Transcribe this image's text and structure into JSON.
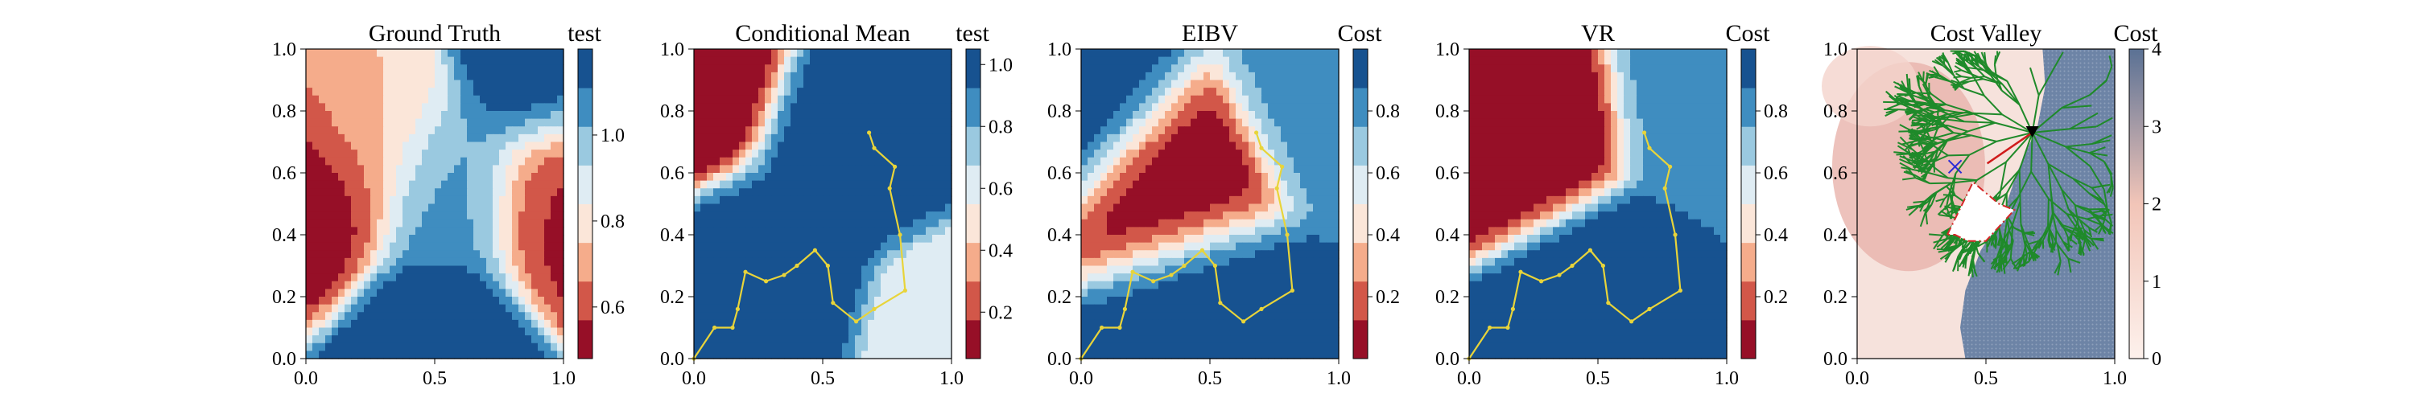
{
  "chart_data": [
    {
      "type": "heatmap",
      "title": "Ground Truth",
      "xlabel": "",
      "ylabel": "",
      "xlim": [
        0.0,
        1.0
      ],
      "ylim": [
        0.0,
        1.0
      ],
      "x_ticks": [
        "0.0",
        "0.5",
        "1.0"
      ],
      "y_ticks": [
        "0.0",
        "0.2",
        "0.4",
        "0.6",
        "0.8",
        "1.0"
      ],
      "colormap": "RdBu",
      "colorbar": {
        "title": "test",
        "range": [
          0.48,
          1.2
        ],
        "ticks": [
          "0.6",
          "0.8",
          "1.0"
        ],
        "tick_values": [
          0.6,
          0.8,
          1.0
        ]
      },
      "field_features": [
        {
          "x": 0.05,
          "y": 0.55,
          "value": 0.5
        },
        {
          "x": 1.0,
          "y": 0.52,
          "value": 0.55
        },
        {
          "x": 0.27,
          "y": 0.77,
          "value": 0.75
        },
        {
          "x": 0.9,
          "y": 0.95,
          "value": 1.2
        },
        {
          "x": 0.5,
          "y": 0.05,
          "value": 1.2
        },
        {
          "x": 0.55,
          "y": 0.55,
          "value": 1.05
        }
      ],
      "path": []
    },
    {
      "type": "heatmap",
      "title": "Conditional Mean",
      "xlabel": "",
      "ylabel": "",
      "xlim": [
        0.0,
        1.0
      ],
      "ylim": [
        0.0,
        1.0
      ],
      "x_ticks": [
        "0.0",
        "0.5",
        "1.0"
      ],
      "y_ticks": [
        "0.0",
        "0.2",
        "0.4",
        "0.6",
        "0.8",
        "1.0"
      ],
      "colormap": "RdBu",
      "colorbar": {
        "title": "test",
        "range": [
          0.05,
          1.05
        ],
        "ticks": [
          "0.2",
          "0.4",
          "0.6",
          "0.8",
          "1.0"
        ],
        "tick_values": [
          0.2,
          0.4,
          0.6,
          0.8,
          1.0
        ]
      },
      "field_features": [
        {
          "x": 0.0,
          "y": 1.0,
          "value": 0.05
        },
        {
          "x": 0.65,
          "y": 0.75,
          "value": 1.0
        },
        {
          "x": 0.3,
          "y": 0.2,
          "value": 1.0
        },
        {
          "x": 1.0,
          "y": 0.0,
          "value": 0.55
        }
      ],
      "path": [
        [
          0.0,
          0.0
        ],
        [
          0.08,
          0.1
        ],
        [
          0.15,
          0.1
        ],
        [
          0.17,
          0.16
        ],
        [
          0.2,
          0.28
        ],
        [
          0.28,
          0.25
        ],
        [
          0.35,
          0.27
        ],
        [
          0.4,
          0.3
        ],
        [
          0.47,
          0.35
        ],
        [
          0.52,
          0.3
        ],
        [
          0.54,
          0.18
        ],
        [
          0.63,
          0.12
        ],
        [
          0.7,
          0.16
        ],
        [
          0.82,
          0.22
        ],
        [
          0.8,
          0.4
        ],
        [
          0.76,
          0.55
        ],
        [
          0.78,
          0.62
        ],
        [
          0.7,
          0.68
        ],
        [
          0.68,
          0.73
        ]
      ]
    },
    {
      "type": "heatmap",
      "title": "EIBV",
      "xlabel": "",
      "ylabel": "",
      "xlim": [
        0.0,
        1.0
      ],
      "ylim": [
        0.0,
        1.0
      ],
      "x_ticks": [
        "0.0",
        "0.5",
        "1.0"
      ],
      "y_ticks": [
        "0.0",
        "0.2",
        "0.4",
        "0.6",
        "0.8",
        "1.0"
      ],
      "colormap": "RdBu",
      "colorbar": {
        "title": "Cost",
        "range": [
          0.0,
          1.0
        ],
        "ticks": [
          "0.2",
          "0.4",
          "0.6",
          "0.8"
        ],
        "tick_values": [
          0.2,
          0.4,
          0.6,
          0.8
        ]
      },
      "field_features": [
        {
          "x": 0.38,
          "y": 0.6,
          "value": 0.0
        },
        {
          "x": 0.5,
          "y": 0.15,
          "value": 1.0
        },
        {
          "x": 0.1,
          "y": 0.9,
          "value": 1.0
        },
        {
          "x": 0.9,
          "y": 0.9,
          "value": 0.8
        }
      ],
      "path": [
        [
          0.0,
          0.0
        ],
        [
          0.08,
          0.1
        ],
        [
          0.15,
          0.1
        ],
        [
          0.17,
          0.16
        ],
        [
          0.2,
          0.28
        ],
        [
          0.28,
          0.25
        ],
        [
          0.35,
          0.27
        ],
        [
          0.4,
          0.3
        ],
        [
          0.47,
          0.35
        ],
        [
          0.52,
          0.3
        ],
        [
          0.54,
          0.18
        ],
        [
          0.63,
          0.12
        ],
        [
          0.7,
          0.16
        ],
        [
          0.82,
          0.22
        ],
        [
          0.8,
          0.4
        ],
        [
          0.76,
          0.55
        ],
        [
          0.78,
          0.62
        ],
        [
          0.7,
          0.68
        ],
        [
          0.68,
          0.73
        ]
      ]
    },
    {
      "type": "heatmap",
      "title": "VR",
      "xlabel": "",
      "ylabel": "",
      "xlim": [
        0.0,
        1.0
      ],
      "ylim": [
        0.0,
        1.0
      ],
      "x_ticks": [
        "0.0",
        "0.5",
        "1.0"
      ],
      "y_ticks": [
        "0.0",
        "0.2",
        "0.4",
        "0.6",
        "0.8",
        "1.0"
      ],
      "colormap": "RdBu",
      "colorbar": {
        "title": "Cost",
        "range": [
          0.0,
          1.0
        ],
        "ticks": [
          "0.2",
          "0.4",
          "0.6",
          "0.8"
        ],
        "tick_values": [
          0.2,
          0.4,
          0.6,
          0.8
        ]
      },
      "field_features": [
        {
          "x": 0.22,
          "y": 0.78,
          "value": 0.0
        },
        {
          "x": 0.5,
          "y": 0.15,
          "value": 1.0
        },
        {
          "x": 0.9,
          "y": 0.9,
          "value": 0.8
        }
      ],
      "path": [
        [
          0.0,
          0.0
        ],
        [
          0.08,
          0.1
        ],
        [
          0.15,
          0.1
        ],
        [
          0.17,
          0.16
        ],
        [
          0.2,
          0.28
        ],
        [
          0.28,
          0.25
        ],
        [
          0.35,
          0.27
        ],
        [
          0.4,
          0.3
        ],
        [
          0.47,
          0.35
        ],
        [
          0.52,
          0.3
        ],
        [
          0.54,
          0.18
        ],
        [
          0.63,
          0.12
        ],
        [
          0.7,
          0.16
        ],
        [
          0.82,
          0.22
        ],
        [
          0.8,
          0.4
        ],
        [
          0.76,
          0.55
        ],
        [
          0.78,
          0.62
        ],
        [
          0.7,
          0.68
        ],
        [
          0.68,
          0.73
        ]
      ]
    },
    {
      "type": "heatmap",
      "title": "Cost Valley",
      "xlabel": "",
      "ylabel": "",
      "xlim": [
        0.0,
        1.0
      ],
      "ylim": [
        0.0,
        1.0
      ],
      "x_ticks": [
        "0.0",
        "0.5",
        "1.0"
      ],
      "y_ticks": [
        "0.0",
        "0.2",
        "0.4",
        "0.6",
        "0.8",
        "1.0"
      ],
      "colormap": "Reds-to-gray",
      "colorbar": {
        "title": "Cost",
        "range": [
          0,
          4
        ],
        "ticks": [
          "0",
          "1",
          "2",
          "3",
          "4"
        ],
        "tick_values": [
          0,
          1,
          2,
          3,
          4
        ]
      },
      "high_cost_boundary": [
        [
          0.72,
          1.0
        ],
        [
          0.73,
          0.88
        ],
        [
          0.7,
          0.75
        ],
        [
          0.62,
          0.6
        ],
        [
          0.56,
          0.45
        ],
        [
          0.48,
          0.35
        ],
        [
          0.42,
          0.22
        ],
        [
          0.4,
          0.1
        ],
        [
          0.42,
          0.0
        ]
      ],
      "current_location": [
        0.68,
        0.73
      ],
      "next_waypoint": [
        0.38,
        0.62
      ],
      "obstacle_polygon": [
        [
          0.35,
          0.4
        ],
        [
          0.45,
          0.57
        ],
        [
          0.55,
          0.5
        ],
        [
          0.61,
          0.48
        ],
        [
          0.5,
          0.38
        ],
        [
          0.43,
          0.38
        ],
        [
          0.38,
          0.4
        ]
      ],
      "colors": {
        "tree": "#1f8a2a",
        "selected_edge": "#d01c1c",
        "obstacle": "#d62728",
        "start_marker": "#000000",
        "target_marker": "#2b2bd6"
      }
    }
  ]
}
